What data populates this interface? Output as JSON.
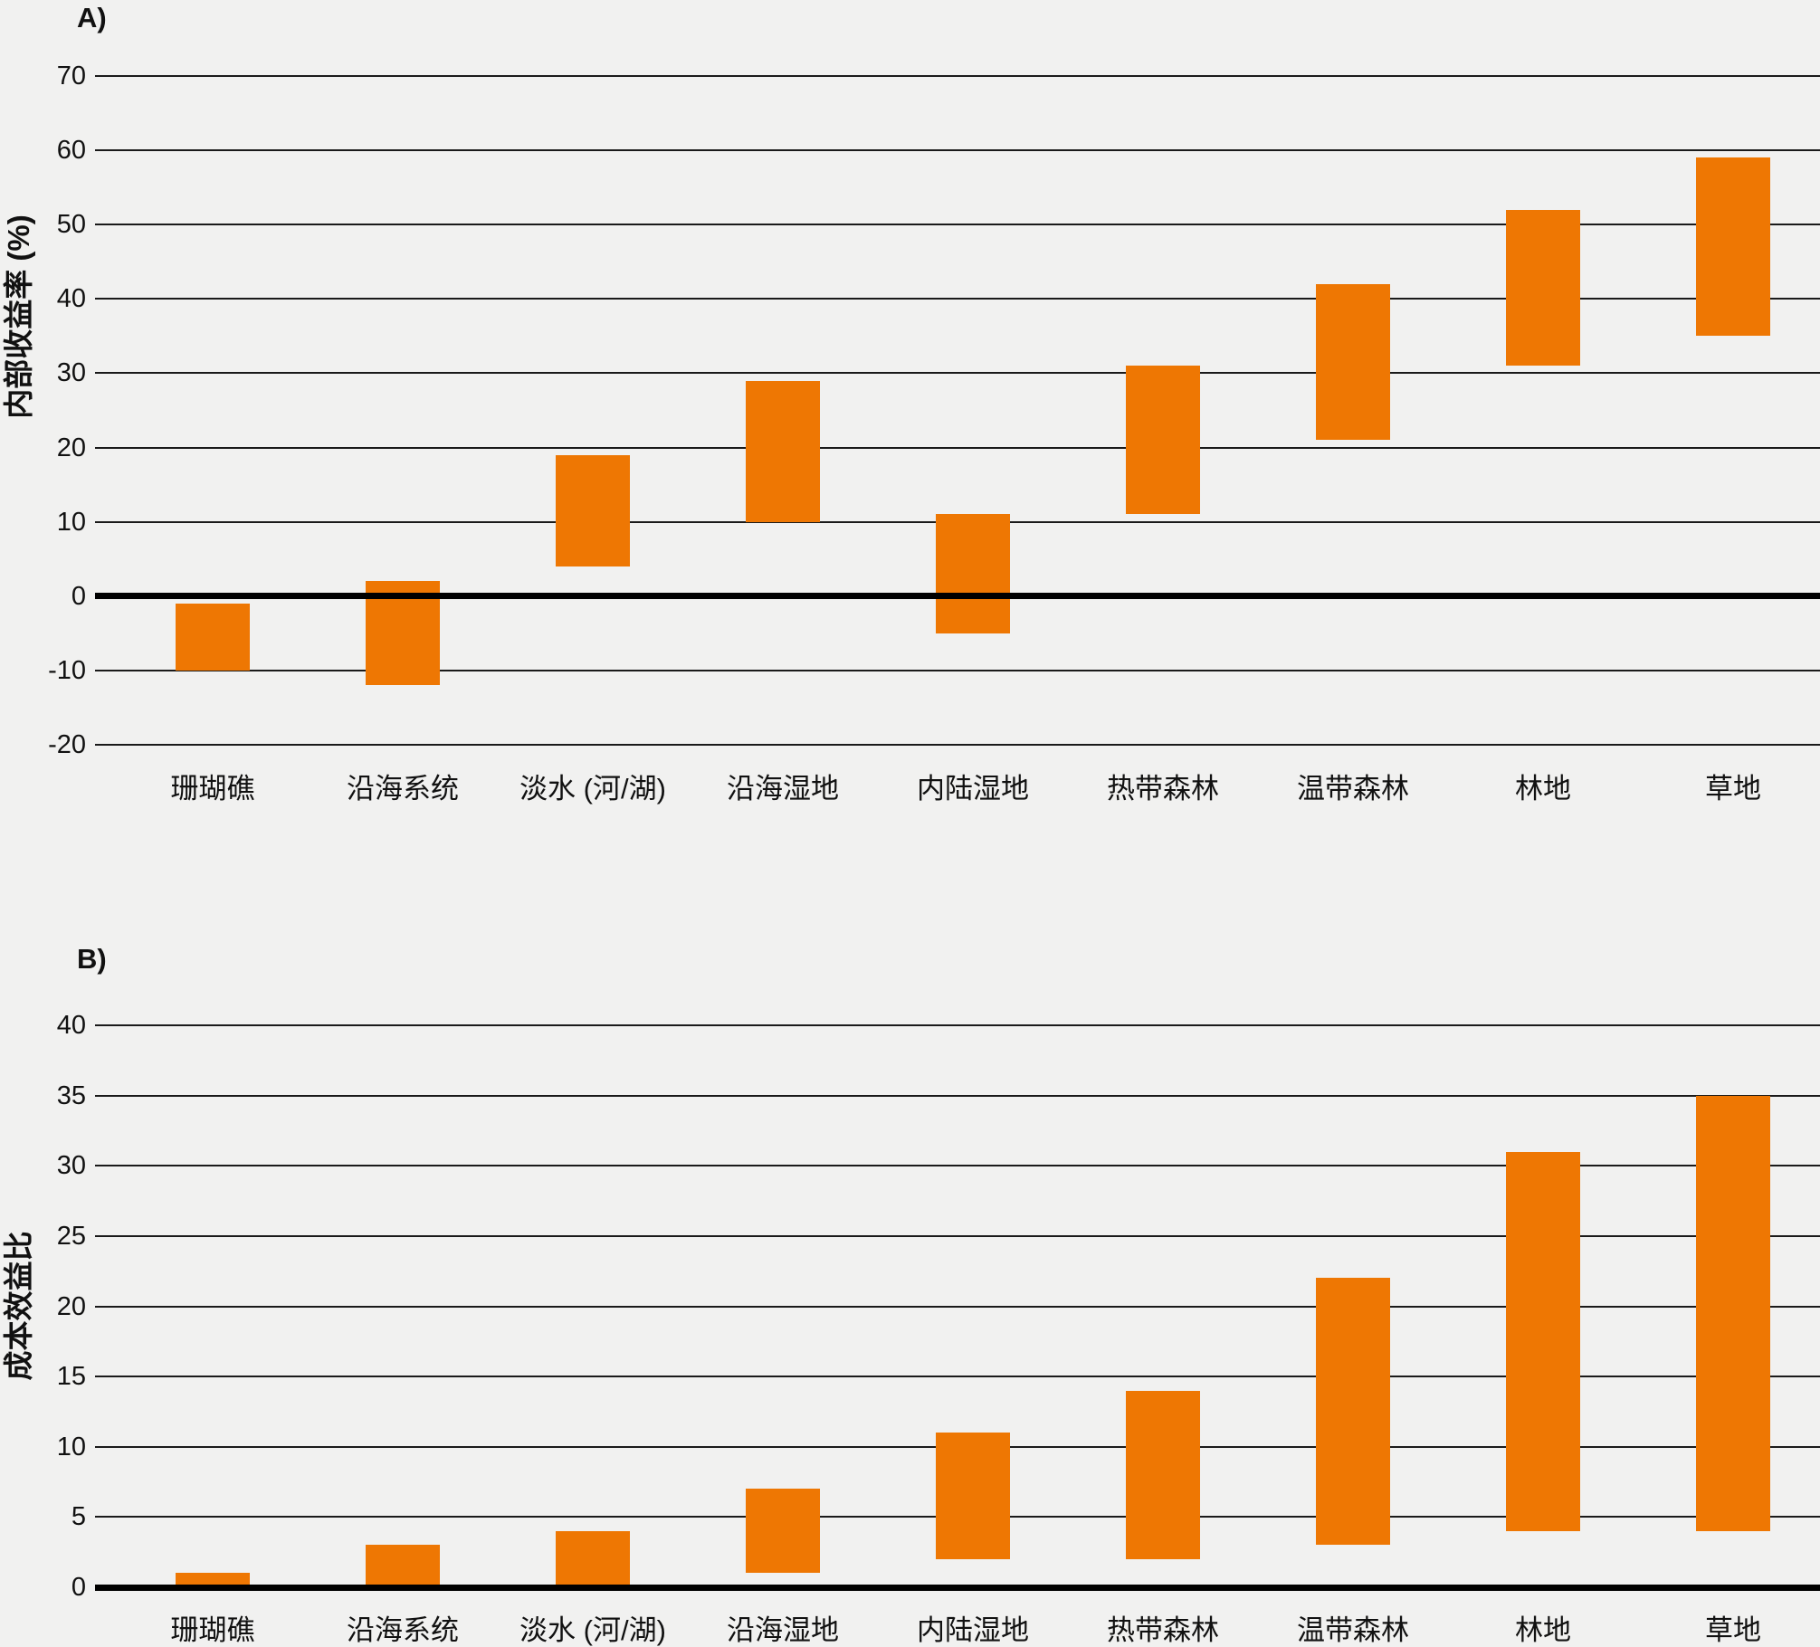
{
  "colors": {
    "bar": "#EE7703",
    "background": "#F1F1F0",
    "gridline": "#1a1a1a",
    "zero_line": "#000000",
    "text": "#111111"
  },
  "chart_data": [
    {
      "type": "bar",
      "variant": "floating-range-bar",
      "panel_label": "A)",
      "ylabel": "内部收益率 (%)",
      "xlabel": "",
      "ylim": [
        -20,
        70
      ],
      "ytick_step": 10,
      "yticks": [
        70,
        60,
        50,
        40,
        30,
        20,
        10,
        0,
        -10,
        -20
      ],
      "grid": "horizontal",
      "legend": "none",
      "categories": [
        "珊瑚礁",
        "沿海系统",
        "淡水 (河/湖)",
        "沿海湿地",
        "内陆湿地",
        "热带森林",
        "温带森林",
        "林地",
        "草地"
      ],
      "ranges_low_high": [
        [
          -10,
          -1
        ],
        [
          -12,
          2
        ],
        [
          4,
          19
        ],
        [
          10,
          29
        ],
        [
          -5,
          11
        ],
        [
          11,
          31
        ],
        [
          21,
          42
        ],
        [
          31,
          52
        ],
        [
          35,
          59
        ]
      ]
    },
    {
      "type": "bar",
      "variant": "floating-range-bar",
      "panel_label": "B)",
      "ylabel": "成本效益比",
      "xlabel": "",
      "ylim": [
        0,
        40
      ],
      "ytick_step": 5,
      "yticks": [
        40,
        35,
        30,
        25,
        20,
        15,
        10,
        5,
        0
      ],
      "grid": "horizontal",
      "legend": "none",
      "categories": [
        "珊瑚礁",
        "沿海系统",
        "淡水 (河/湖)",
        "沿海湿地",
        "内陆湿地",
        "热带森林",
        "温带森林",
        "林地",
        "草地"
      ],
      "ranges_low_high": [
        [
          0,
          1
        ],
        [
          0,
          3
        ],
        [
          0,
          4
        ],
        [
          1,
          7
        ],
        [
          2,
          11
        ],
        [
          2,
          14
        ],
        [
          3,
          22
        ],
        [
          4,
          31
        ],
        [
          4,
          35
        ]
      ]
    }
  ]
}
